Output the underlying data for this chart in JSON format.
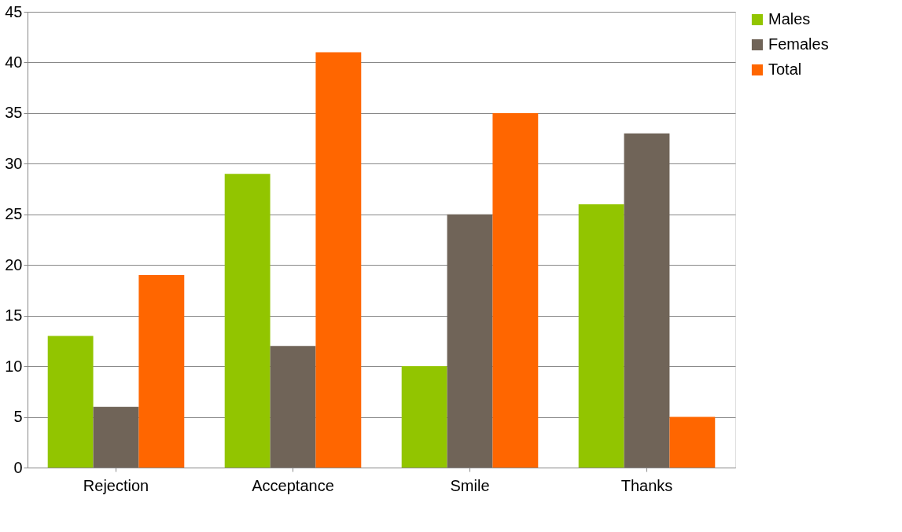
{
  "chart_data": {
    "type": "bar",
    "categories": [
      "Rejection",
      "Acceptance",
      "Smile",
      "Thanks"
    ],
    "series": [
      {
        "name": "Males",
        "color": "#92c500",
        "values": [
          13,
          29,
          10,
          26
        ]
      },
      {
        "name": "Females",
        "color": "#706458",
        "values": [
          6,
          12,
          25,
          33
        ]
      },
      {
        "name": "Total",
        "color": "#ff6600",
        "values": [
          19,
          41,
          35,
          5
        ]
      }
    ],
    "ylim": [
      0,
      45
    ],
    "yticks": [
      0,
      5,
      10,
      15,
      20,
      25,
      30,
      35,
      40,
      45
    ],
    "grid": "y",
    "legend": "right"
  }
}
